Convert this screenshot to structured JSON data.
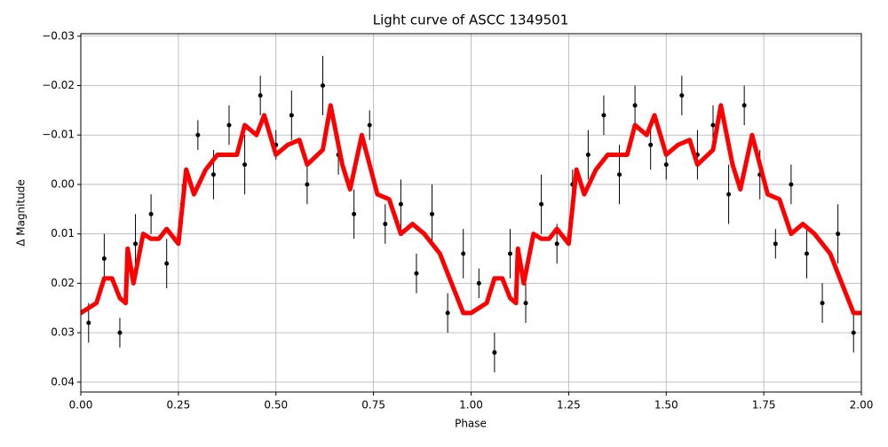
{
  "chart_data": {
    "type": "scatter",
    "title": "Light curve of ASCC 1349501",
    "xlabel": "Phase",
    "ylabel": "Δ Magnitude",
    "xlim": [
      0,
      2
    ],
    "ylim": [
      0.042,
      -0.0305
    ],
    "grid": true,
    "xticks": [
      {
        "value": 0,
        "label": "0.00"
      },
      {
        "value": 0.25,
        "label": "0.25"
      },
      {
        "value": 0.5,
        "label": "0.50"
      },
      {
        "value": 0.75,
        "label": "0.75"
      },
      {
        "value": 1,
        "label": "1.00"
      },
      {
        "value": 1.25,
        "label": "1.25"
      },
      {
        "value": 1.5,
        "label": "1.50"
      },
      {
        "value": 1.75,
        "label": "1.75"
      },
      {
        "value": 2,
        "label": "2.00"
      }
    ],
    "yticks": [
      {
        "value": -0.03,
        "label": "−0.03"
      },
      {
        "value": -0.02,
        "label": "−0.02"
      },
      {
        "value": -0.01,
        "label": "−0.01"
      },
      {
        "value": 0,
        "label": "0.00"
      },
      {
        "value": 0.01,
        "label": "0.01"
      },
      {
        "value": 0.02,
        "label": "0.02"
      },
      {
        "value": 0.03,
        "label": "0.03"
      },
      {
        "value": 0.04,
        "label": "0.04"
      }
    ],
    "series": [
      {
        "kind": "errorbar",
        "color": "#000000",
        "x": [
          0.02,
          0.06,
          0.1,
          0.14,
          0.18,
          0.22,
          0.26,
          0.3,
          0.34,
          0.38,
          0.42,
          0.46,
          0.5,
          0.54,
          0.58,
          0.62,
          0.66,
          0.7,
          0.74,
          0.78,
          0.82,
          0.86,
          0.9,
          0.94,
          0.98,
          1.02,
          1.06,
          1.1,
          1.14,
          1.18,
          1.22,
          1.26,
          1.3,
          1.34,
          1.38,
          1.42,
          1.46,
          1.5,
          1.54,
          1.58,
          1.62,
          1.66,
          1.7,
          1.74,
          1.78,
          1.82,
          1.86,
          1.9,
          1.94,
          1.98
        ],
        "values": [
          0.028,
          0.015,
          0.03,
          0.012,
          0.006,
          0.016,
          0.004,
          -0.01,
          -0.002,
          -0.012,
          -0.004,
          -0.018,
          -0.008,
          -0.014,
          0,
          -0.02,
          -0.006,
          0.006,
          -0.012,
          0.008,
          0.004,
          0.018,
          0.006,
          0.026,
          0.014,
          0.02,
          0.034,
          0.014,
          0.024,
          0.004,
          0.012,
          0,
          -0.006,
          -0.014,
          -0.002,
          -0.016,
          -0.008,
          -0.004,
          -0.018,
          -0.006,
          -0.012,
          0.002,
          -0.016,
          -0.002,
          0.012,
          0,
          0.014,
          0.024,
          0.01,
          0.03
        ],
        "errors": [
          0.004,
          0.005,
          0.003,
          0.006,
          0.004,
          0.005,
          0.004,
          0.003,
          0.005,
          0.004,
          0.006,
          0.004,
          0.003,
          0.005,
          0.004,
          0.006,
          0.004,
          0.005,
          0.003,
          0.004,
          0.005,
          0.004,
          0.006,
          0.004,
          0.005,
          0.003,
          0.004,
          0.005,
          0.004,
          0.006,
          0.004,
          0.003,
          0.005,
          0.004,
          0.006,
          0.004,
          0.005,
          0.003,
          0.004,
          0.005,
          0.004,
          0.006,
          0.004,
          0.005,
          0.003,
          0.004,
          0.005,
          0.004,
          0.006,
          0.004
        ]
      },
      {
        "kind": "line",
        "color": "#ff0000",
        "x": [
          0,
          0.02,
          0.04,
          0.06,
          0.08,
          0.1,
          0.115,
          0.12,
          0.135,
          0.16,
          0.18,
          0.2,
          0.22,
          0.25,
          0.27,
          0.29,
          0.32,
          0.35,
          0.38,
          0.4,
          0.42,
          0.45,
          0.47,
          0.5,
          0.53,
          0.56,
          0.58,
          0.62,
          0.64,
          0.67,
          0.69,
          0.72,
          0.76,
          0.79,
          0.82,
          0.85,
          0.88,
          0.92,
          0.95,
          0.98,
          1.0,
          1.02,
          1.04,
          1.06,
          1.08,
          1.1,
          1.115,
          1.12,
          1.135,
          1.16,
          1.18,
          1.2,
          1.22,
          1.25,
          1.27,
          1.29,
          1.32,
          1.35,
          1.38,
          1.4,
          1.42,
          1.45,
          1.47,
          1.5,
          1.53,
          1.56,
          1.58,
          1.62,
          1.64,
          1.67,
          1.69,
          1.72,
          1.76,
          1.79,
          1.82,
          1.85,
          1.88,
          1.92,
          1.95,
          1.98,
          2.0
        ],
        "values": [
          0.026,
          0.025,
          0.024,
          0.019,
          0.019,
          0.023,
          0.024,
          0.013,
          0.02,
          0.01,
          0.011,
          0.011,
          0.009,
          0.012,
          -0.003,
          0.002,
          -0.003,
          -0.006,
          -0.006,
          -0.006,
          -0.012,
          -0.01,
          -0.014,
          -0.006,
          -0.008,
          -0.009,
          -0.004,
          -0.007,
          -0.016,
          -0.004,
          0.001,
          -0.01,
          0.002,
          0.003,
          0.01,
          0.008,
          0.01,
          0.014,
          0.02,
          0.026,
          0.026,
          0.025,
          0.024,
          0.019,
          0.019,
          0.023,
          0.024,
          0.013,
          0.02,
          0.01,
          0.011,
          0.011,
          0.009,
          0.012,
          -0.003,
          0.002,
          -0.003,
          -0.006,
          -0.006,
          -0.006,
          -0.012,
          -0.01,
          -0.014,
          -0.006,
          -0.008,
          -0.009,
          -0.004,
          -0.007,
          -0.016,
          -0.004,
          0.001,
          -0.01,
          0.002,
          0.003,
          0.01,
          0.008,
          0.01,
          0.014,
          0.02,
          0.026,
          0.026
        ]
      }
    ]
  }
}
